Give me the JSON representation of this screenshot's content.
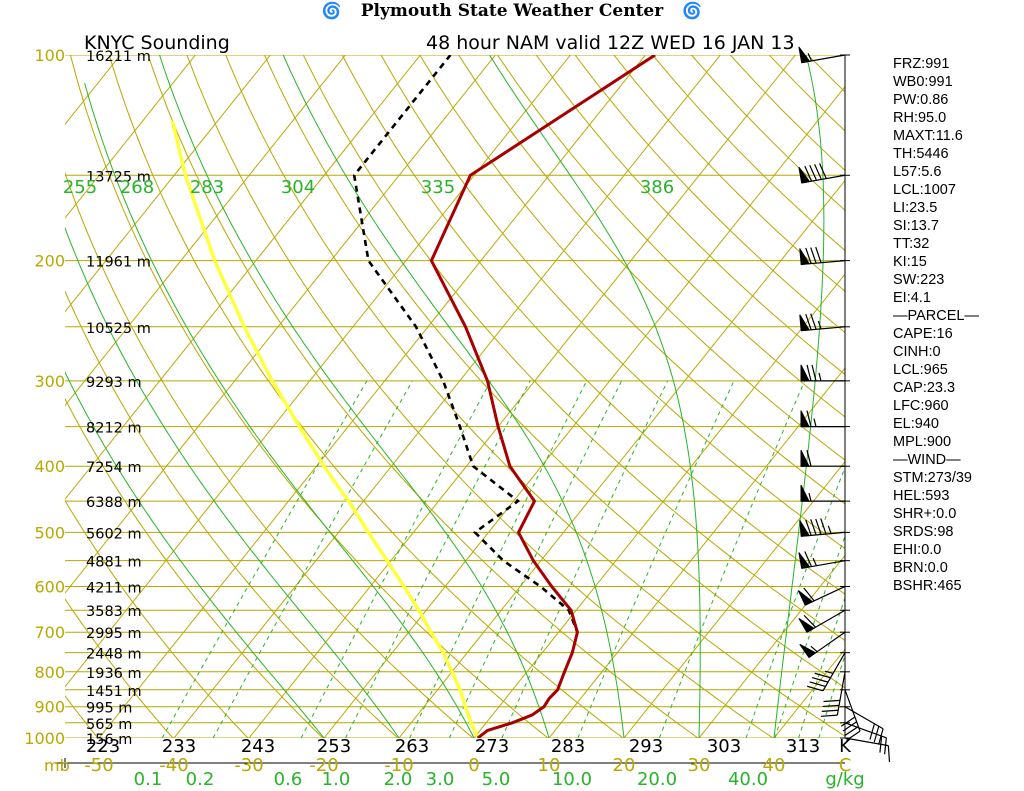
{
  "header": {
    "title": "Plymouth State Weather Center",
    "left_icon": "hurricane-icon",
    "right_icon": "hurricane-icon"
  },
  "subtitle": {
    "station": "KNYC Sounding",
    "valid": "48 hour NAM valid 12Z WED 16 JAN 13"
  },
  "indices": [
    "FRZ:991",
    "WB0:991",
    "PW:0.86",
    "RH:95.0",
    "MAXT:11.6",
    "TH:5446",
    "L57:5.6",
    "LCL:1007",
    "LI:23.5",
    "SI:13.7",
    "TT:32",
    "KI:15",
    "SW:223",
    "EI:4.1",
    "—PARCEL—",
    "CAPE:16",
    "CINH:0",
    "LCL:965",
    "CAP:23.3",
    "LFC:960",
    "EL:940",
    "MPL:900",
    "—WIND—",
    "STM:273/39",
    "HEL:593",
    "SHR+:0.0",
    "SRDS:98",
    "EHI:0.0",
    "BRN:0.0",
    "BSHR:465"
  ],
  "chart_data": {
    "type": "skew-t log-p sounding",
    "pressure_axis_label": "mb",
    "pressure_levels": [
      100,
      200,
      300,
      400,
      500,
      600,
      700,
      800,
      900,
      1000
    ],
    "height_labels": [
      {
        "p": 100,
        "label": "16211 m"
      },
      {
        "p": 150,
        "label": "13725 m"
      },
      {
        "p": 200,
        "label": "11961 m"
      },
      {
        "p": 250,
        "label": "10525 m"
      },
      {
        "p": 300,
        "label": "9293 m"
      },
      {
        "p": 350,
        "label": "8212 m"
      },
      {
        "p": 400,
        "label": "7254 m"
      },
      {
        "p": 450,
        "label": "6388 m"
      },
      {
        "p": 500,
        "label": "5602 m"
      },
      {
        "p": 550,
        "label": "4881 m"
      },
      {
        "p": 600,
        "label": "4211 m"
      },
      {
        "p": 650,
        "label": "3583 m"
      },
      {
        "p": 700,
        "label": "2995 m"
      },
      {
        "p": 750,
        "label": "2448 m"
      },
      {
        "p": 800,
        "label": "1936 m"
      },
      {
        "p": 850,
        "label": "1451 m"
      },
      {
        "p": 900,
        "label": "995 m"
      },
      {
        "p": 950,
        "label": "565 m"
      },
      {
        "p": 1000,
        "label": "156 m"
      }
    ],
    "temperature_ticks": [
      -50,
      -40,
      -30,
      -20,
      -10,
      0,
      10,
      20,
      30,
      40
    ],
    "temperature_unit": "C",
    "mixing_ratio_labels": [
      "0.1",
      "0.2",
      "0.6",
      "1.0",
      "2.0",
      "3.0",
      "5.0",
      "10.0",
      "20.0",
      "40.0"
    ],
    "mixing_ratio_values": [
      0.1,
      0.2,
      0.6,
      1.0,
      2.0,
      3.0,
      5.0,
      10.0,
      20.0,
      40.0
    ],
    "mixing_ratio_unit": "g/kg",
    "theta_bottom_labels": [
      "223",
      "233",
      "243",
      "253",
      "263",
      "273",
      "283",
      "293",
      "303",
      "313"
    ],
    "theta_unit": "K",
    "theta_e_labels": [
      "255",
      "268",
      "283",
      "304",
      "335",
      "386"
    ],
    "temperature_profile": [
      {
        "p": 1000,
        "t": 0.5
      },
      {
        "p": 975,
        "t": 1.0
      },
      {
        "p": 950,
        "t": 3.5
      },
      {
        "p": 925,
        "t": 5.3
      },
      {
        "p": 900,
        "t": 6.0
      },
      {
        "p": 875,
        "t": 5.8
      },
      {
        "p": 850,
        "t": 6.0
      },
      {
        "p": 800,
        "t": 5.0
      },
      {
        "p": 750,
        "t": 4.0
      },
      {
        "p": 700,
        "t": 2.5
      },
      {
        "p": 650,
        "t": -0.7
      },
      {
        "p": 600,
        "t": -5.8
      },
      {
        "p": 550,
        "t": -11.0
      },
      {
        "p": 500,
        "t": -16.0
      },
      {
        "p": 450,
        "t": -17.2
      },
      {
        "p": 400,
        "t": -24.2
      },
      {
        "p": 350,
        "t": -30.0
      },
      {
        "p": 300,
        "t": -36.3
      },
      {
        "p": 250,
        "t": -45.0
      },
      {
        "p": 200,
        "t": -56.6
      },
      {
        "p": 150,
        "t": -60.5
      },
      {
        "p": 100,
        "t": -48.7
      }
    ],
    "dewpoint_profile": [
      {
        "p": 1000,
        "t": 0.5
      },
      {
        "p": 975,
        "t": 1.0
      },
      {
        "p": 950,
        "t": 3.5
      },
      {
        "p": 925,
        "t": 5.3
      },
      {
        "p": 900,
        "t": 6.0
      },
      {
        "p": 875,
        "t": 5.8
      },
      {
        "p": 850,
        "t": 6.0
      },
      {
        "p": 800,
        "t": 5.0
      },
      {
        "p": 750,
        "t": 4.0
      },
      {
        "p": 700,
        "t": 2.5
      },
      {
        "p": 650,
        "t": -1.0
      },
      {
        "p": 600,
        "t": -7.3
      },
      {
        "p": 550,
        "t": -15.0
      },
      {
        "p": 500,
        "t": -21.8
      },
      {
        "p": 450,
        "t": -19.4
      },
      {
        "p": 400,
        "t": -29.1
      },
      {
        "p": 350,
        "t": -35.1
      },
      {
        "p": 300,
        "t": -42.2
      },
      {
        "p": 250,
        "t": -51.6
      },
      {
        "p": 200,
        "t": -65.0
      },
      {
        "p": 150,
        "t": -76.0
      },
      {
        "p": 100,
        "t": -76.0
      }
    ],
    "parcel_profile": [
      {
        "p": 1000,
        "t": 0.5
      },
      {
        "p": 950,
        "t": -2.0
      },
      {
        "p": 900,
        "t": -4.5
      },
      {
        "p": 850,
        "t": -7.0
      },
      {
        "p": 800,
        "t": -10.0
      },
      {
        "p": 750,
        "t": -13.2
      },
      {
        "p": 700,
        "t": -17.0
      },
      {
        "p": 650,
        "t": -21.0
      },
      {
        "p": 600,
        "t": -25.5
      },
      {
        "p": 550,
        "t": -30.5
      },
      {
        "p": 500,
        "t": -36.0
      },
      {
        "p": 450,
        "t": -42.0
      },
      {
        "p": 400,
        "t": -49.0
      },
      {
        "p": 350,
        "t": -56.5
      },
      {
        "p": 300,
        "t": -65.0
      },
      {
        "p": 250,
        "t": -74.5
      },
      {
        "p": 200,
        "t": -85.5
      },
      {
        "p": 150,
        "t": -98.5
      },
      {
        "p": 125,
        "t": -106.0
      }
    ],
    "wind_barbs": [
      {
        "p": 100,
        "dir": 260,
        "spd": 55
      },
      {
        "p": 150,
        "dir": 260,
        "spd": 90
      },
      {
        "p": 200,
        "dir": 265,
        "spd": 80
      },
      {
        "p": 250,
        "dir": 265,
        "spd": 75
      },
      {
        "p": 300,
        "dir": 270,
        "spd": 75
      },
      {
        "p": 350,
        "dir": 270,
        "spd": 65
      },
      {
        "p": 400,
        "dir": 270,
        "spd": 60
      },
      {
        "p": 450,
        "dir": 270,
        "spd": 55
      },
      {
        "p": 500,
        "dir": 265,
        "spd": 95
      },
      {
        "p": 550,
        "dir": 260,
        "spd": 65
      },
      {
        "p": 600,
        "dir": 245,
        "spd": 60
      },
      {
        "p": 650,
        "dir": 240,
        "spd": 60
      },
      {
        "p": 700,
        "dir": 235,
        "spd": 55
      },
      {
        "p": 750,
        "dir": 210,
        "spd": 45
      },
      {
        "p": 800,
        "dir": 190,
        "spd": 40
      },
      {
        "p": 850,
        "dir": 160,
        "spd": 40
      },
      {
        "p": 900,
        "dir": 120,
        "spd": 30
      },
      {
        "p": 950,
        "dir": 110,
        "spd": 20
      },
      {
        "p": 1000,
        "dir": 100,
        "spd": 10
      }
    ],
    "colors": {
      "grid": "#b8a800",
      "green": "#28b428",
      "temperature": "#a80000",
      "dewpoint": "#000000",
      "parcel": "#ffff3c",
      "frame": "#000000"
    }
  }
}
